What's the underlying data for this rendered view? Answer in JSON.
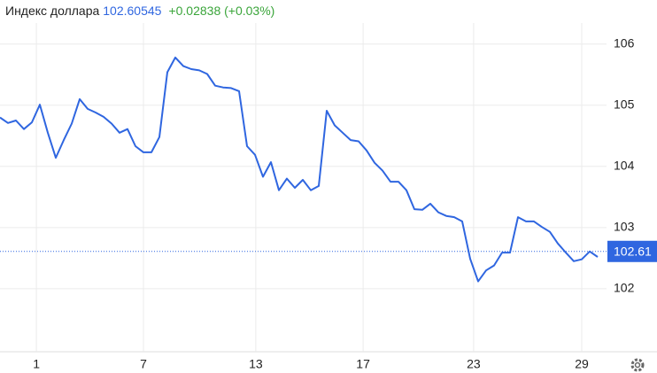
{
  "chart_data": {
    "type": "line",
    "title": "Индекс доллара",
    "price": "102.60545",
    "change": "+0.02838 (+0.03%)",
    "last_value": 102.61,
    "x": [
      0,
      0.3,
      0.6,
      0.9,
      1.2,
      1.5,
      1.8,
      2.1,
      2.4,
      2.7,
      3,
      3.3,
      3.6,
      3.9,
      4.2,
      4.5,
      4.8,
      5.1,
      5.4,
      5.7,
      6,
      6.3,
      6.6,
      6.9,
      7.2,
      7.5,
      7.8,
      8.1,
      8.4,
      8.7,
      9,
      9.3,
      9.6,
      9.9,
      10.2,
      10.5,
      10.8,
      11.1,
      11.4,
      11.7,
      12,
      12.3,
      12.6,
      12.9,
      13.2,
      13.5,
      13.8,
      14.1,
      14.4,
      14.7,
      15,
      15.3,
      15.6,
      15.9,
      16.2,
      16.5,
      16.8,
      17.1,
      17.4,
      17.7,
      18,
      18.3,
      18.6,
      18.9,
      19.2,
      19.5,
      19.8,
      20.1,
      20.4,
      20.7,
      21,
      21.3,
      21.6,
      21.9,
      22.2,
      22.5
    ],
    "series": [
      {
        "color": "#2f66e0",
        "values": [
          104.8,
          104.71,
          104.75,
          104.61,
          104.72,
          105.01,
          104.55,
          104.14,
          104.43,
          104.7,
          105.1,
          104.94,
          104.88,
          104.81,
          104.7,
          104.55,
          104.61,
          104.33,
          104.23,
          104.23,
          104.48,
          105.54,
          105.78,
          105.64,
          105.59,
          105.57,
          105.51,
          105.32,
          105.29,
          105.28,
          105.23,
          104.33,
          104.19,
          103.83,
          104.07,
          103.61,
          103.8,
          103.65,
          103.78,
          103.61,
          103.68,
          104.91,
          104.67,
          104.55,
          104.43,
          104.41,
          104.26,
          104.06,
          103.93,
          103.75,
          103.75,
          103.61,
          103.3,
          103.29,
          103.39,
          103.25,
          103.19,
          103.17,
          103.1,
          102.49,
          102.12,
          102.3,
          102.38,
          102.59,
          102.59,
          103.17,
          103.1,
          103.1,
          103.01,
          102.93,
          102.74,
          102.59,
          102.45,
          102.48,
          102.61,
          102.52
        ]
      }
    ],
    "xlim": [
      0,
      22.8
    ],
    "xticks": [
      {
        "value": 1.37,
        "label": "1"
      },
      {
        "value": 5.4,
        "label": "7"
      },
      {
        "value": 9.63,
        "label": "13"
      },
      {
        "value": 13.67,
        "label": "17"
      },
      {
        "value": 17.83,
        "label": "23"
      },
      {
        "value": 21.9,
        "label": "29"
      }
    ],
    "ylim": [
      100.97,
      106.72
    ],
    "yticks": [
      102,
      103,
      104,
      105,
      106
    ],
    "grid": true
  }
}
